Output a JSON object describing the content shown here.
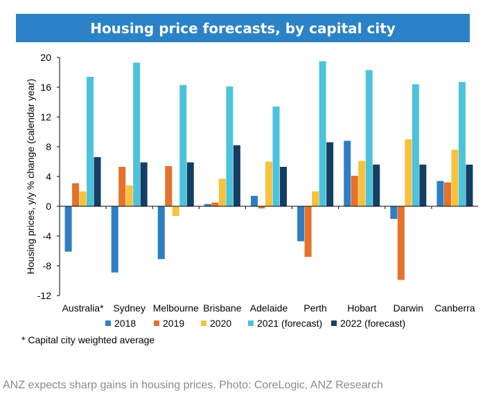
{
  "title": "Housing price forecasts, by capital city",
  "footnote": "* Capital city weighted average",
  "caption": "ANZ expects sharp gains in housing prices. Photo: CoreLogic, ANZ Research",
  "chart_data": {
    "type": "bar",
    "ylabel": "Housing prices, y/y % change (calendar year)",
    "ylim": [
      -12,
      20
    ],
    "yticks": [
      -12,
      -8,
      -4,
      0,
      4,
      8,
      12,
      16,
      20
    ],
    "categories": [
      "Australia*",
      "Sydney",
      "Melbourne",
      "Brisbane",
      "Adelaide",
      "Perth",
      "Hobart",
      "Darwin",
      "Canberra"
    ],
    "legend_position": "bottom",
    "series": [
      {
        "name": "2018",
        "color": "#2f7ec1",
        "values": [
          -6.1,
          -8.9,
          -7.1,
          0.3,
          1.4,
          -4.7,
          8.8,
          -1.7,
          3.4
        ]
      },
      {
        "name": "2019",
        "color": "#e5712b",
        "values": [
          3.1,
          5.3,
          5.4,
          0.5,
          -0.3,
          -6.8,
          4.1,
          -9.9,
          3.2
        ]
      },
      {
        "name": "2020",
        "color": "#f7c23e",
        "values": [
          2.0,
          2.8,
          -1.3,
          3.7,
          6.0,
          2.0,
          6.1,
          9.0,
          7.6
        ]
      },
      {
        "name": "2021 (forecast)",
        "color": "#4cc3dc",
        "values": [
          17.4,
          19.3,
          16.3,
          16.1,
          13.4,
          19.5,
          18.3,
          16.4,
          16.7
        ]
      },
      {
        "name": "2022 (forecast)",
        "color": "#153e63",
        "values": [
          6.6,
          5.9,
          5.9,
          8.2,
          5.3,
          8.6,
          5.6,
          5.6,
          5.6
        ]
      }
    ]
  }
}
